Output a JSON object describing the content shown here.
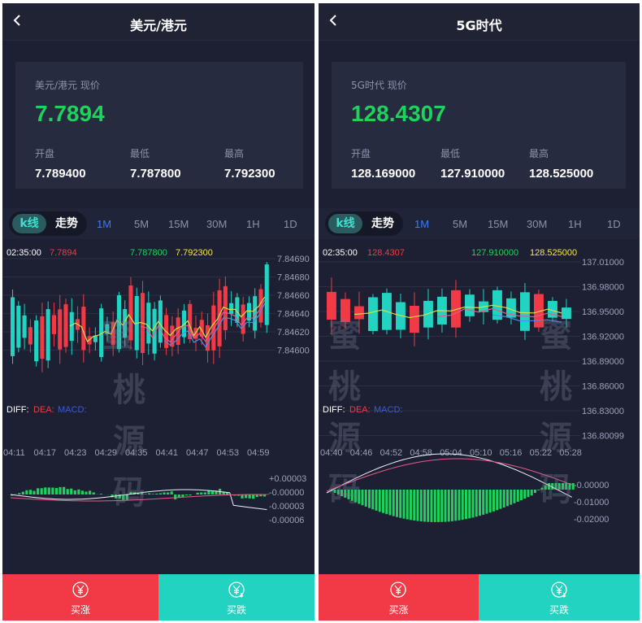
{
  "left": {
    "title": "美元/港元",
    "price_label": "美元/港元 现价",
    "price": "7.7894",
    "stats": [
      {
        "label": "开盘",
        "value": "7.789400"
      },
      {
        "label": "最低",
        "value": "7.787800"
      },
      {
        "label": "最高",
        "value": "7.792300"
      }
    ],
    "toggle": {
      "kline": "k线",
      "trend": "走势"
    },
    "periods": [
      "1M",
      "5M",
      "15M",
      "30M",
      "1H",
      "1D"
    ],
    "active_period": "1M",
    "chart_info": {
      "time": "02:35:00",
      "v1": "7.7894",
      "v3": "7.787800",
      "v4": "7.792300"
    },
    "y_ticks": [
      "7.84690",
      "7.84680",
      "7.84660",
      "7.84640",
      "7.84620",
      "7.84600"
    ],
    "x_ticks": [
      "04:11",
      "04:17",
      "04:23",
      "04:29",
      "04:35",
      "04:41",
      "04:47",
      "04:53",
      "04:59"
    ],
    "macd_label": {
      "diff": "DIFF:",
      "dea": "DEA:",
      "macd": "MACD:"
    },
    "macd_ticks": [
      "+0.00003",
      "-0.00000",
      "-0.00003",
      "-0.00006"
    ],
    "watermark": [
      "蜜",
      "桃",
      "源",
      "码"
    ],
    "buy_up": "买涨",
    "buy_down": "买跌"
  },
  "right": {
    "title": "5G时代",
    "price_label": "5G时代 现价",
    "price": "128.4307",
    "stats": [
      {
        "label": "开盘",
        "value": "128.169000"
      },
      {
        "label": "最低",
        "value": "127.910000"
      },
      {
        "label": "最高",
        "value": "128.525000"
      }
    ],
    "toggle": {
      "kline": "k线",
      "trend": "走势"
    },
    "periods": [
      "1M",
      "5M",
      "15M",
      "30M",
      "1H",
      "1D"
    ],
    "active_period": "1M",
    "chart_info": {
      "time": "02:35:00",
      "v1": "128.4307",
      "v3": "127.910000",
      "v4": "128.525000"
    },
    "y_ticks": [
      "137.01000",
      "136.98000",
      "136.95000",
      "136.92000",
      "136.89000",
      "136.86000",
      "136.83000",
      "136.80099"
    ],
    "x_ticks": [
      "04:40",
      "04:46",
      "04:52",
      "04:58",
      "05:04",
      "05:10",
      "05:16",
      "05:22",
      "05:28"
    ],
    "macd_label": {
      "diff": "DIFF:",
      "dea": "DEA:",
      "macd": "MACD:"
    },
    "macd_ticks": [
      "-0.00000",
      "-0.01000",
      "-0.02000"
    ],
    "watermark": [
      "蜜",
      "桃",
      "源",
      "码"
    ],
    "buy_up": "买涨",
    "buy_down": "买跌"
  },
  "colors": {
    "up": "#f13a45",
    "down": "#21d3c0",
    "price_green": "#1fd25c",
    "active_period": "#3b79ff",
    "ma1": "#d2e04a",
    "ma2": "#e85a8a",
    "ma3": "#4a8ee8"
  }
}
